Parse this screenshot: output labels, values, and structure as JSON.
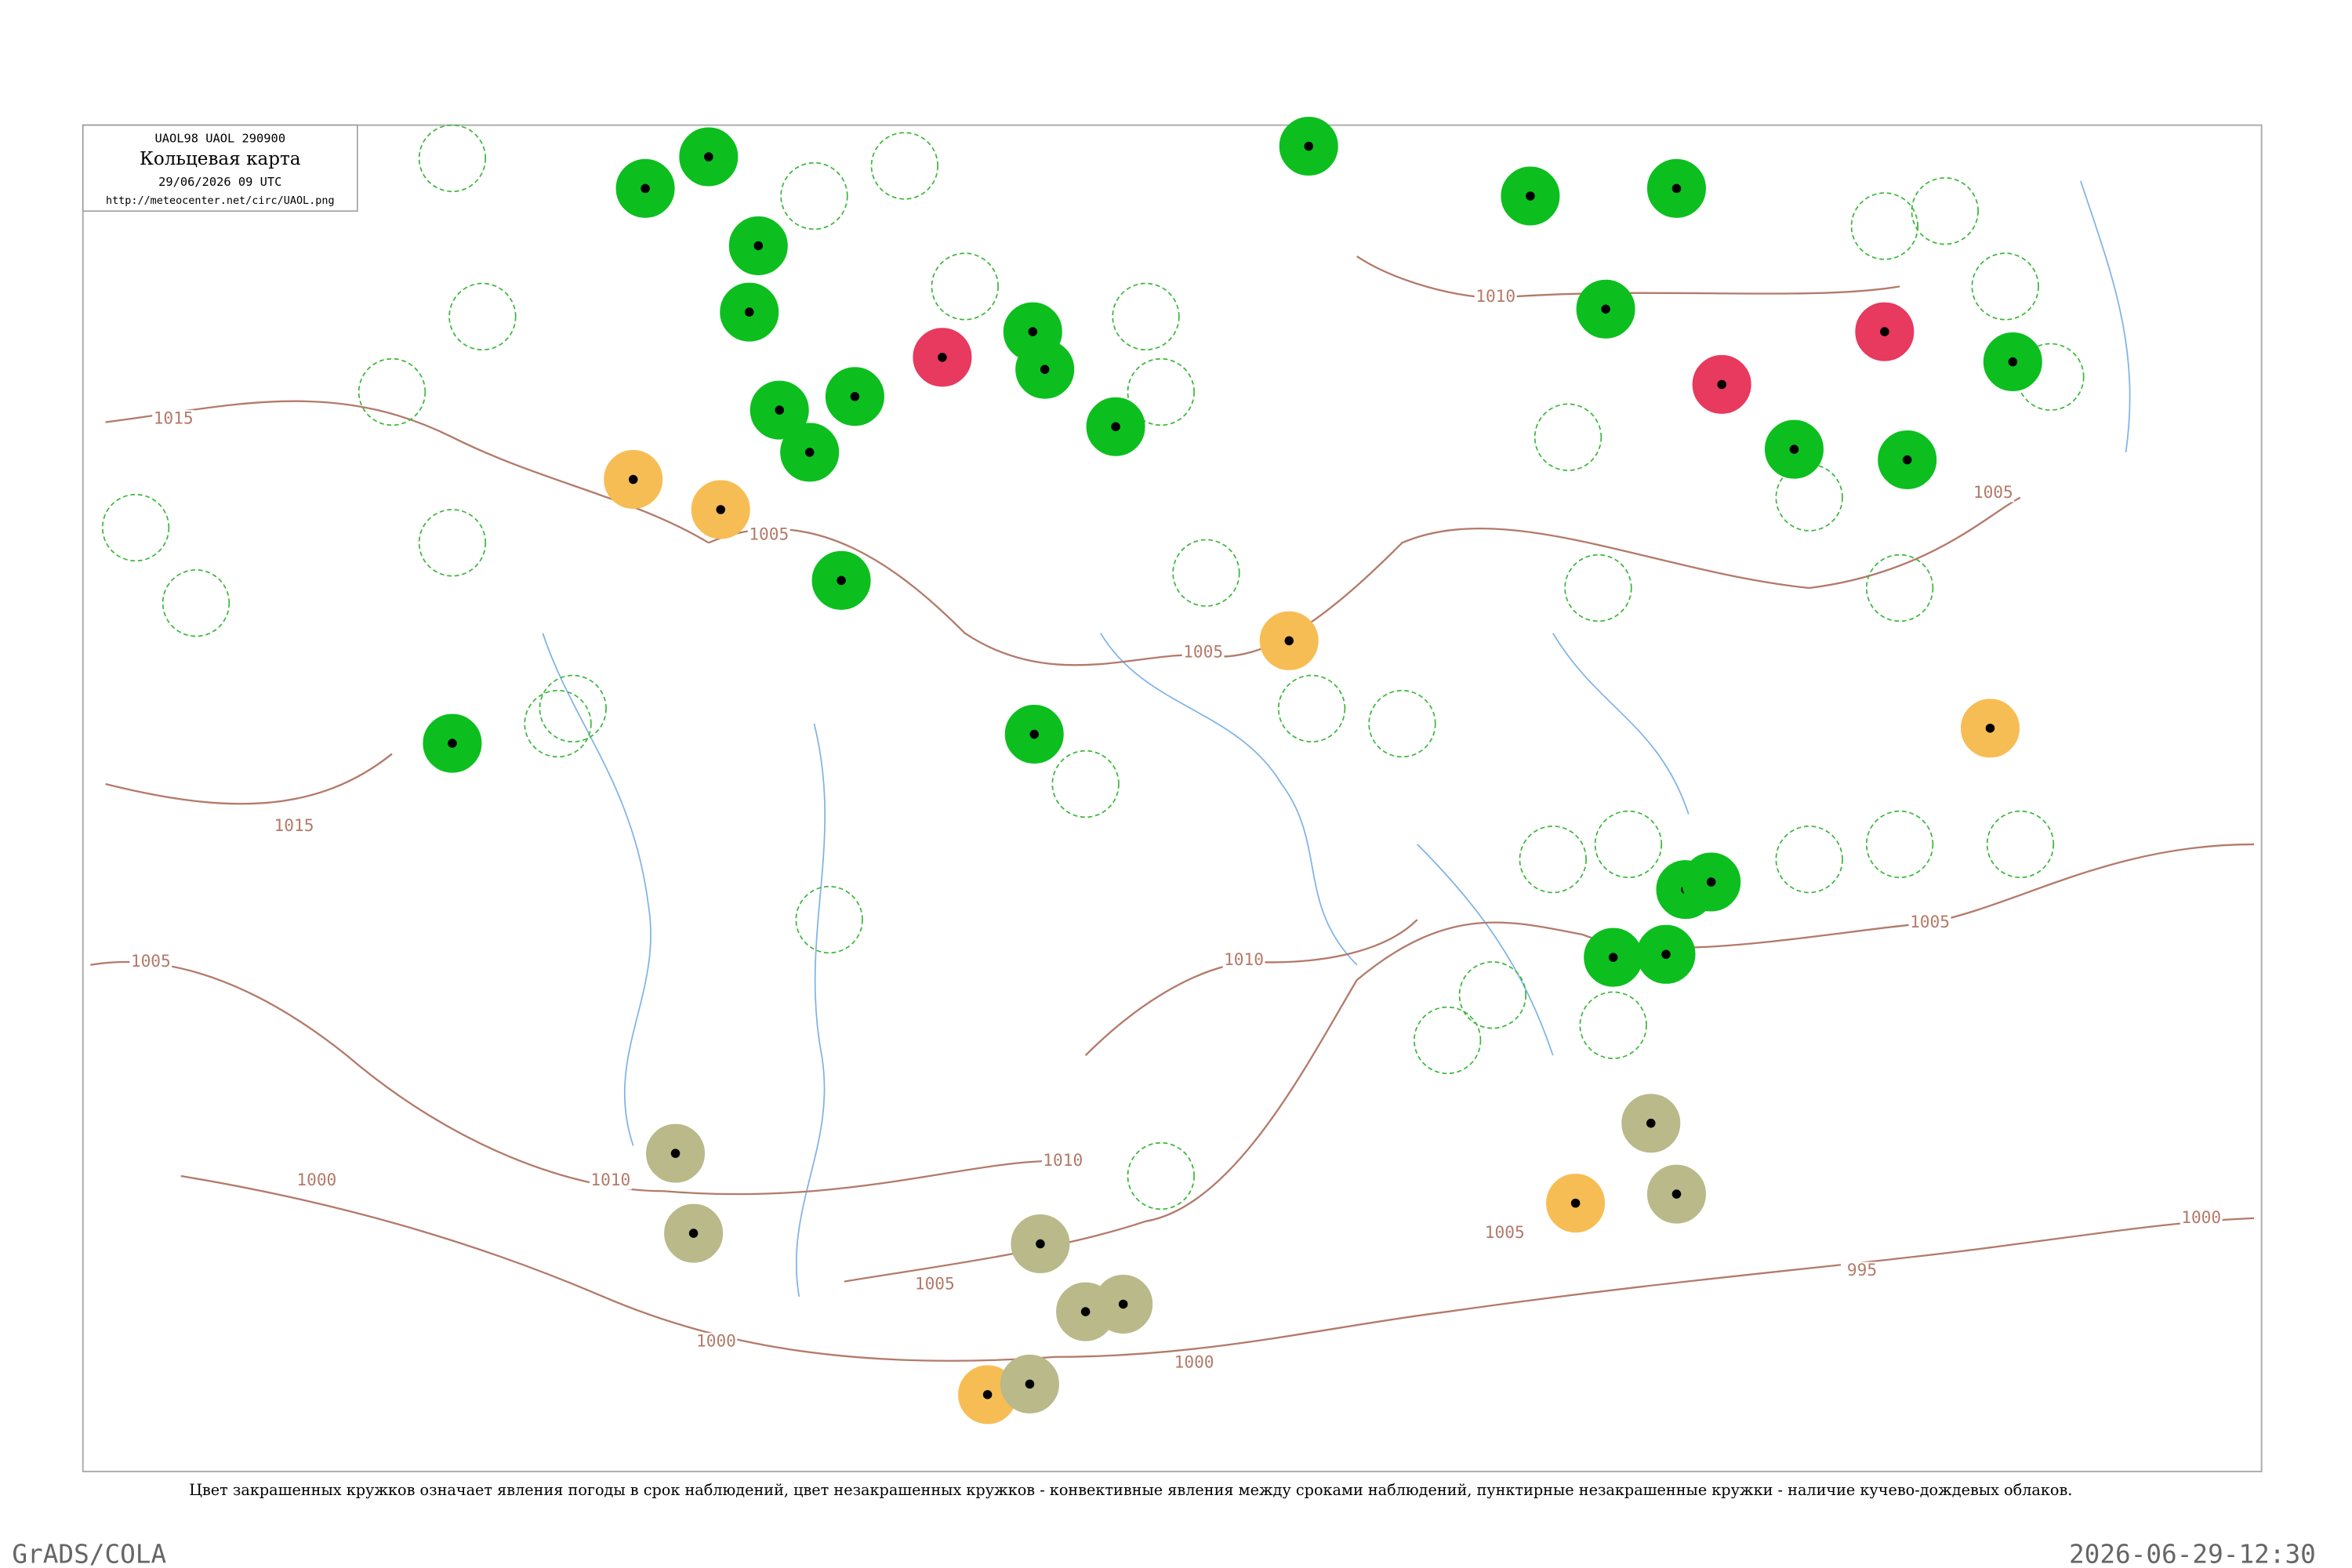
{
  "header": {
    "code": "UAOL98  UAOL  290900",
    "title": "Кольцевая карта",
    "time": "29/06/2026 09 UTC",
    "url": "http://meteocenter.net/circ/UAOL.png"
  },
  "isobar_labels": [
    "1015",
    "1015",
    "1005",
    "1000",
    "1005",
    "1005",
    "1010",
    "1010",
    "1010",
    "1005",
    "1000",
    "1000",
    "1005",
    "995",
    "1000",
    "1005",
    "1005",
    "1010"
  ],
  "caption": "Цвет закрашенных кружков означает явления погоды в срок наблюдений, цвет незакрашенных кружков - конвективные явления между сроками наблюдений, пунктирные незакрашенные кружки - наличие кучево-дождевых облаков.",
  "footer": {
    "left": "GrADS/COLA",
    "right": "2026-06-29-12:30"
  }
}
